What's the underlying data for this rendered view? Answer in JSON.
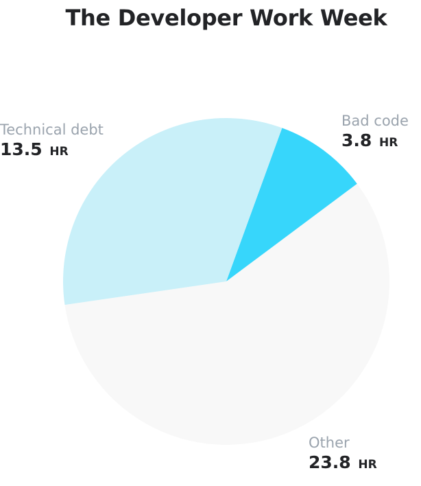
{
  "chart_data": {
    "type": "pie",
    "title": "The Developer Work Week",
    "slices": [
      {
        "name": "Bad code",
        "value": 3.8,
        "unit": "HR",
        "value_label": "3.8",
        "color": "#37d6fb"
      },
      {
        "name": "Other",
        "value": 23.8,
        "unit": "HR",
        "value_label": "23.8",
        "color": "#f8f8f8"
      },
      {
        "name": "Technical debt",
        "value": 13.5,
        "unit": "HR",
        "value_label": "13.5",
        "color": "#c9f0f9"
      }
    ]
  }
}
